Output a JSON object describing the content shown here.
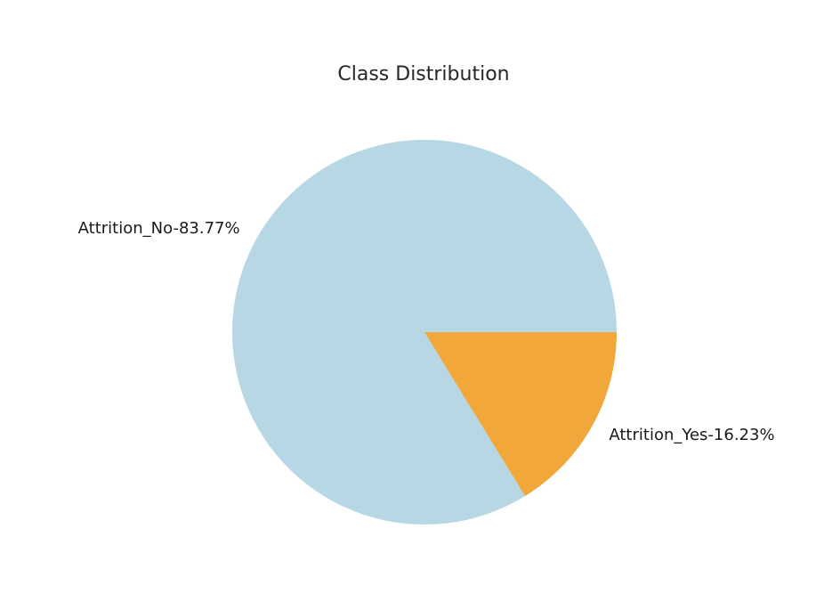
{
  "chart_data": {
    "type": "pie",
    "title": "Class Distribution",
    "slices": [
      {
        "label": "Attrition_No-83.77%",
        "value": 83.77,
        "color": "#b6d7e3"
      },
      {
        "label": "Attrition_Yes-16.23%",
        "value": 16.23,
        "color": "#f1a73a"
      }
    ],
    "start_angle_deg": 0,
    "direction": "counterclockwise",
    "legend": "none"
  }
}
